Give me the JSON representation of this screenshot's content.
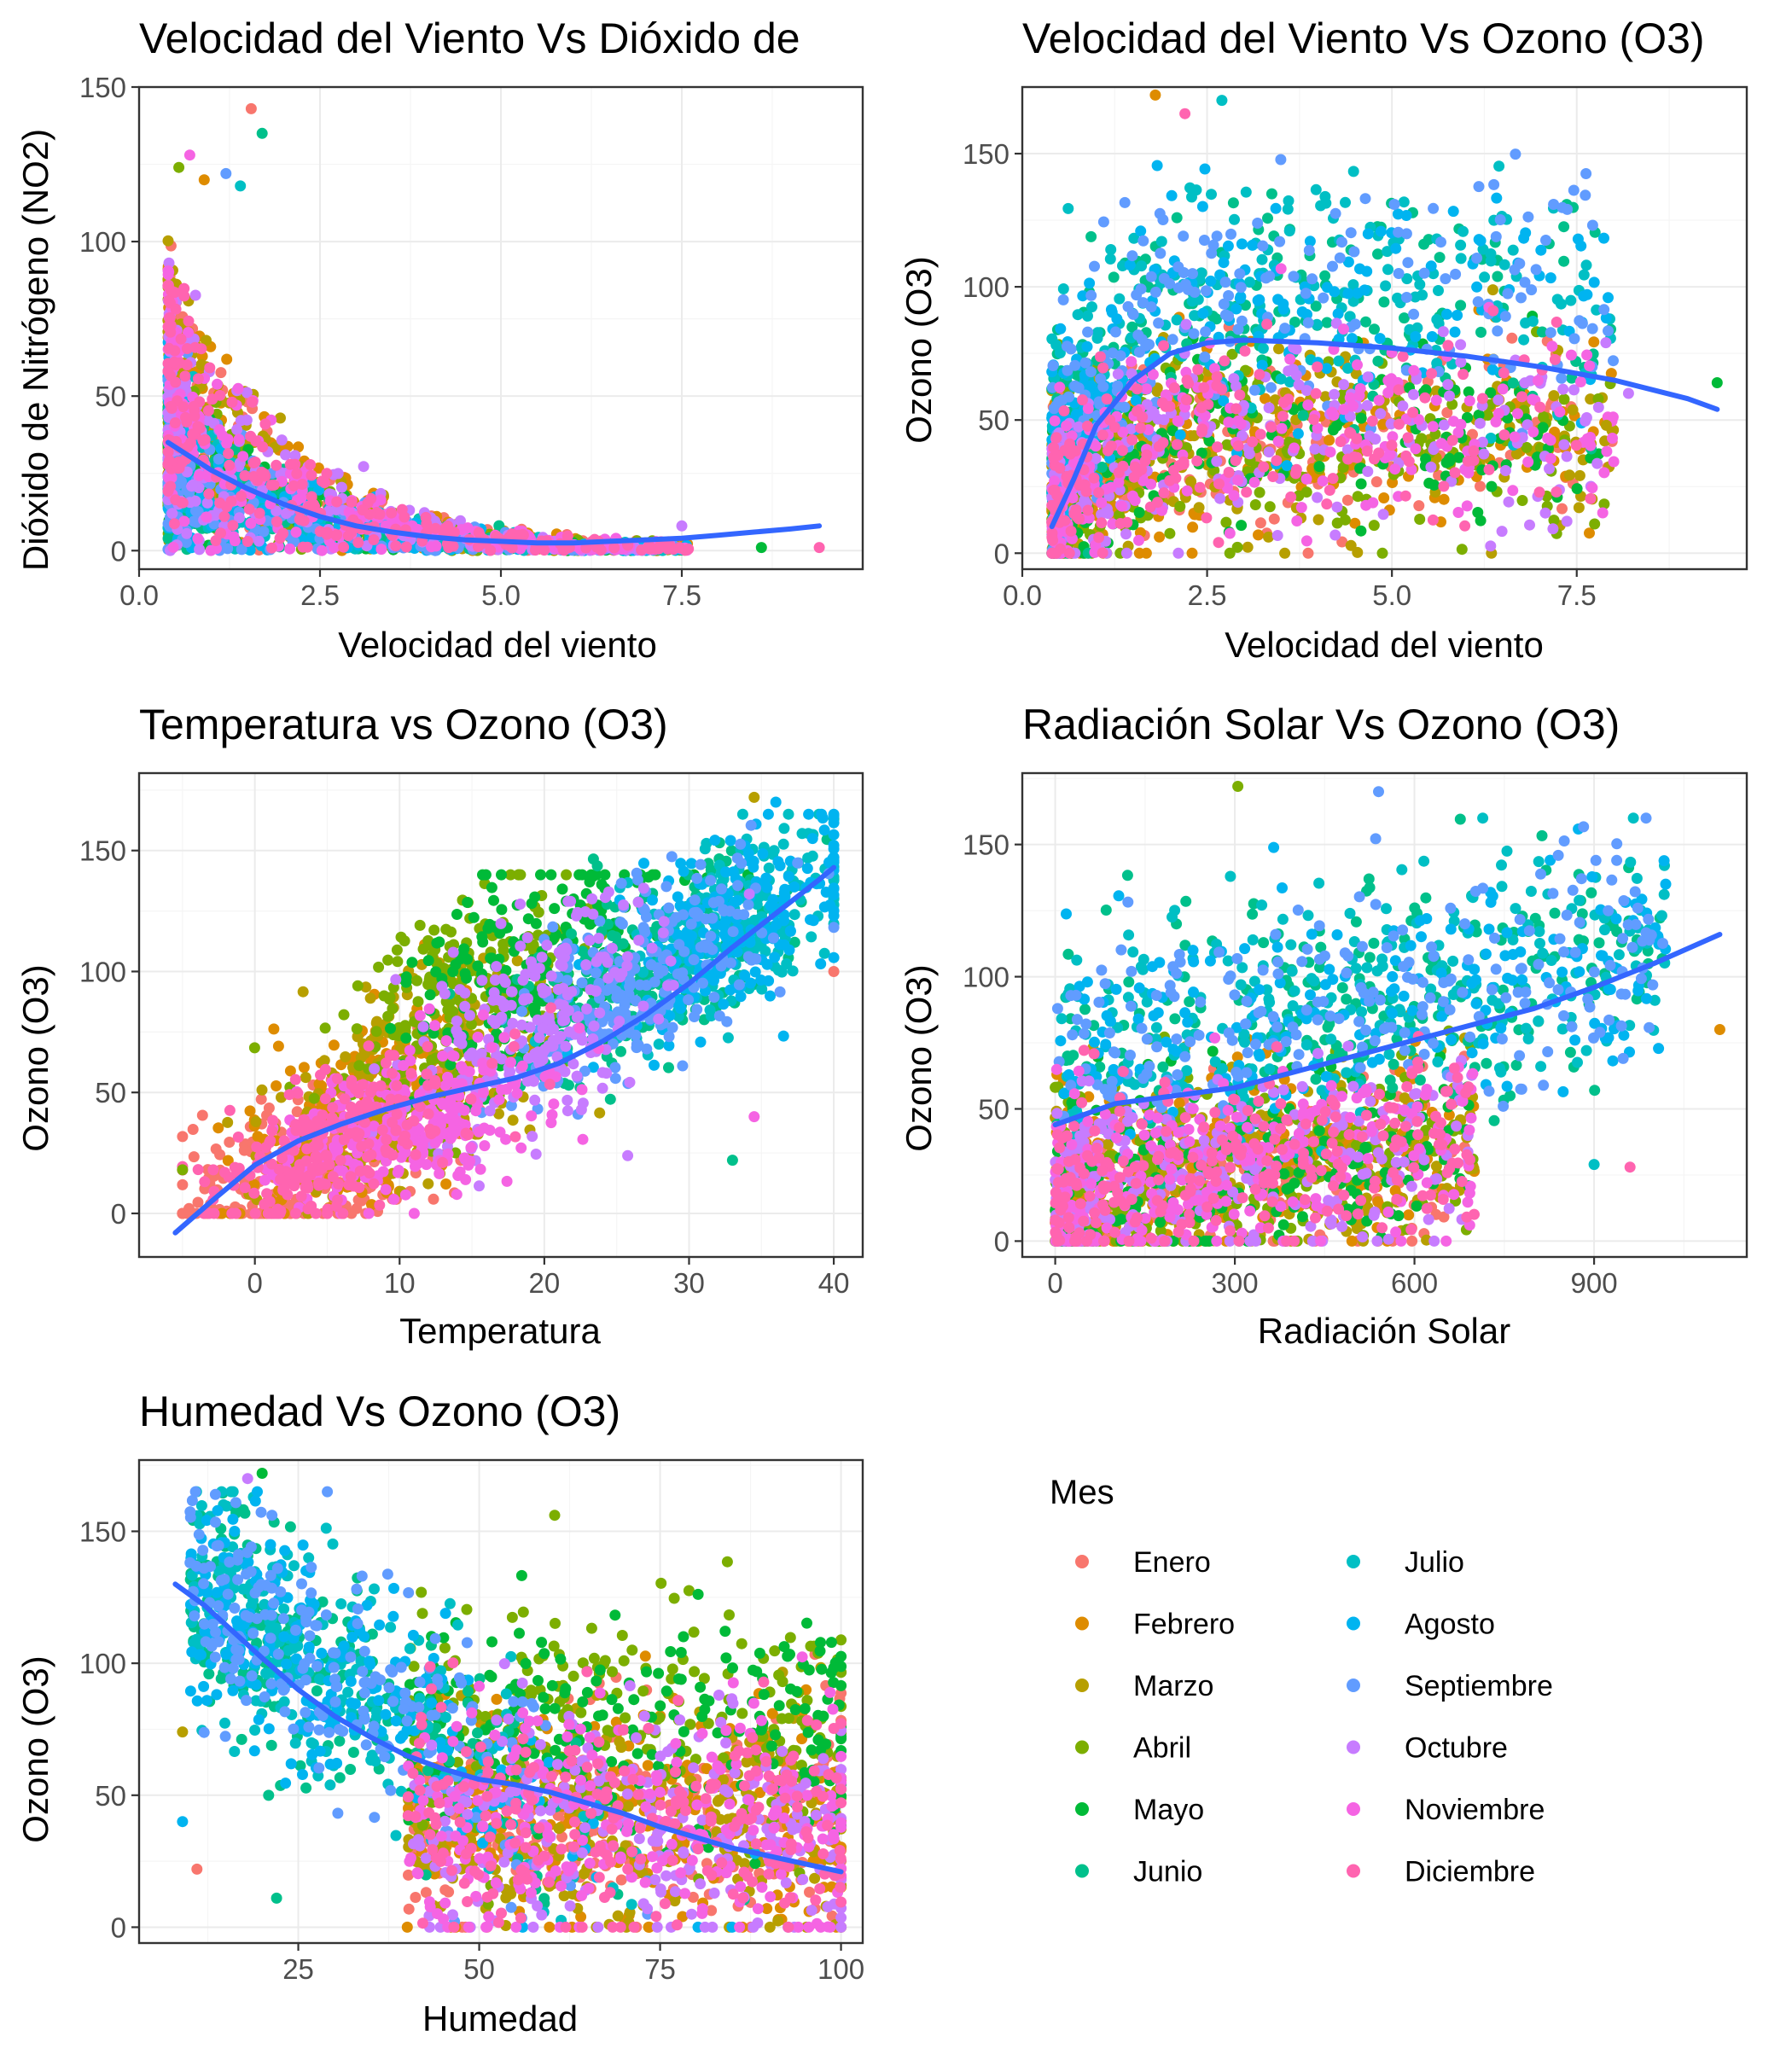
{
  "legend": {
    "title": "Mes",
    "items": [
      {
        "label": "Enero",
        "color": "#F8766D"
      },
      {
        "label": "Febrero",
        "color": "#DE8C00"
      },
      {
        "label": "Marzo",
        "color": "#B79F00"
      },
      {
        "label": "Abril",
        "color": "#7CAE00"
      },
      {
        "label": "Mayo",
        "color": "#00BA38"
      },
      {
        "label": "Junio",
        "color": "#00C08B"
      },
      {
        "label": "Julio",
        "color": "#00BFC4"
      },
      {
        "label": "Agosto",
        "color": "#00B4F0"
      },
      {
        "label": "Septiembre",
        "color": "#619CFF"
      },
      {
        "label": "Octubre",
        "color": "#C77CFF"
      },
      {
        "label": "Noviembre",
        "color": "#F564E3"
      },
      {
        "label": "Diciembre",
        "color": "#FF64B0"
      }
    ]
  },
  "smooth_color": "#3366FF",
  "chart_data": [
    {
      "type": "scatter",
      "title": "Velocidad del Viento Vs Dióxido de",
      "xlabel": "Velocidad del viento",
      "ylabel": "Dióxido de Nitrógeno (NO2)",
      "xlim": [
        0,
        10
      ],
      "ylim": [
        -6,
        150
      ],
      "x_ticks": [
        0,
        2.5,
        5,
        7.5
      ],
      "x_tick_labels": [
        "0.0",
        "2.5",
        "5.0",
        "7.5"
      ],
      "y_ticks": [
        0,
        50,
        100,
        150
      ],
      "y_tick_labels": [
        "0",
        "50",
        "100",
        "150"
      ],
      "grid": true,
      "smooth": [
        [
          0.4,
          35
        ],
        [
          1,
          26
        ],
        [
          1.5,
          20
        ],
        [
          2,
          15
        ],
        [
          2.5,
          11
        ],
        [
          3,
          8
        ],
        [
          3.5,
          6
        ],
        [
          4,
          4.5
        ],
        [
          4.5,
          3.5
        ],
        [
          5,
          3
        ],
        [
          5.5,
          2.5
        ],
        [
          6,
          2.5
        ],
        [
          6.5,
          3
        ],
        [
          7,
          3.5
        ],
        [
          7.5,
          4
        ],
        [
          8,
          5
        ],
        [
          8.5,
          6
        ],
        [
          9,
          7
        ],
        [
          9.4,
          8
        ]
      ],
      "notable_points": [
        [
          1.55,
          143
        ],
        [
          1.7,
          135
        ],
        [
          0.7,
          128
        ],
        [
          0.55,
          124
        ],
        [
          1.2,
          122
        ],
        [
          0.9,
          120
        ],
        [
          1.4,
          118
        ],
        [
          9.4,
          1
        ],
        [
          8.6,
          1
        ],
        [
          7.5,
          8
        ]
      ]
    },
    {
      "type": "scatter",
      "title": "Velocidad del Viento Vs Ozono (O3)",
      "xlabel": "Velocidad del viento",
      "ylabel": "Ozono (O3)",
      "xlim": [
        0,
        9.8
      ],
      "ylim": [
        -6,
        175
      ],
      "x_ticks": [
        0,
        2.5,
        5,
        7.5
      ],
      "x_tick_labels": [
        "0.0",
        "2.5",
        "5.0",
        "7.5"
      ],
      "y_ticks": [
        0,
        50,
        100,
        150
      ],
      "y_tick_labels": [
        "0",
        "50",
        "100",
        "150"
      ],
      "grid": true,
      "smooth": [
        [
          0.4,
          10
        ],
        [
          0.7,
          28
        ],
        [
          1,
          48
        ],
        [
          1.5,
          65
        ],
        [
          2,
          75
        ],
        [
          2.5,
          79
        ],
        [
          3,
          80
        ],
        [
          4,
          79
        ],
        [
          5,
          77
        ],
        [
          6,
          74
        ],
        [
          7,
          70
        ],
        [
          8,
          65
        ],
        [
          9,
          58
        ],
        [
          9.4,
          54
        ]
      ],
      "notable_points": [
        [
          1.8,
          172
        ],
        [
          2.7,
          170
        ],
        [
          2.2,
          165
        ],
        [
          9.4,
          64
        ],
        [
          8.2,
          60
        ],
        [
          7.9,
          48
        ]
      ]
    },
    {
      "type": "scatter",
      "title": "Temperatura vs Ozono (O3)",
      "xlabel": "Temperatura",
      "ylabel": "Ozono (O3)",
      "xlim": [
        -8,
        42
      ],
      "ylim": [
        -18,
        182
      ],
      "x_ticks": [
        0,
        10,
        20,
        30,
        40
      ],
      "x_tick_labels": [
        "0",
        "10",
        "20",
        "30",
        "40"
      ],
      "y_ticks": [
        0,
        50,
        100,
        150
      ],
      "y_tick_labels": [
        "0",
        "50",
        "100",
        "150"
      ],
      "grid": true,
      "smooth": [
        [
          -5.5,
          -8
        ],
        [
          -3,
          5
        ],
        [
          0,
          20
        ],
        [
          3,
          30
        ],
        [
          6,
          37
        ],
        [
          9,
          43
        ],
        [
          12,
          48
        ],
        [
          15,
          52
        ],
        [
          18,
          56
        ],
        [
          21,
          62
        ],
        [
          24,
          71
        ],
        [
          27,
          82
        ],
        [
          30,
          95
        ],
        [
          33,
          110
        ],
        [
          36,
          124
        ],
        [
          39,
          138
        ],
        [
          40,
          143
        ]
      ],
      "notable_points": [
        [
          34.5,
          172
        ],
        [
          36,
          170
        ],
        [
          40,
          100
        ],
        [
          33,
          22
        ],
        [
          34.5,
          40
        ],
        [
          -5,
          18
        ]
      ]
    },
    {
      "type": "scatter",
      "title": "Radiación Solar Vs Ozono (O3)",
      "xlabel": "Radiación Solar",
      "ylabel": "Ozono (O3)",
      "xlim": [
        -55,
        1155
      ],
      "ylim": [
        -6,
        177
      ],
      "x_ticks": [
        0,
        300,
        600,
        900
      ],
      "x_tick_labels": [
        "0",
        "300",
        "600",
        "900"
      ],
      "y_ticks": [
        0,
        50,
        100,
        150
      ],
      "y_tick_labels": [
        "0",
        "50",
        "100",
        "150"
      ],
      "grid": true,
      "smooth": [
        [
          0,
          44
        ],
        [
          100,
          52
        ],
        [
          200,
          55
        ],
        [
          300,
          58
        ],
        [
          400,
          64
        ],
        [
          500,
          70
        ],
        [
          600,
          76
        ],
        [
          700,
          82
        ],
        [
          800,
          88
        ],
        [
          900,
          96
        ],
        [
          1000,
          105
        ],
        [
          1110,
          116
        ]
      ],
      "notable_points": [
        [
          305,
          172
        ],
        [
          540,
          170
        ],
        [
          1110,
          80
        ],
        [
          900,
          29
        ],
        [
          960,
          28
        ]
      ]
    },
    {
      "type": "scatter",
      "title": "Humedad Vs Ozono (O3)",
      "xlabel": "Humedad",
      "ylabel": "Ozono (O3)",
      "xlim": [
        3,
        103
      ],
      "ylim": [
        -6,
        177
      ],
      "x_ticks": [
        25,
        50,
        75,
        100
      ],
      "x_tick_labels": [
        "25",
        "50",
        "75",
        "100"
      ],
      "y_ticks": [
        0,
        50,
        100,
        150
      ],
      "y_tick_labels": [
        "0",
        "50",
        "100",
        "150"
      ],
      "grid": true,
      "smooth": [
        [
          8,
          130
        ],
        [
          12,
          122
        ],
        [
          16,
          112
        ],
        [
          20,
          102
        ],
        [
          25,
          90
        ],
        [
          30,
          80
        ],
        [
          35,
          72
        ],
        [
          40,
          65
        ],
        [
          45,
          60
        ],
        [
          50,
          56
        ],
        [
          55,
          54
        ],
        [
          60,
          51
        ],
        [
          65,
          47
        ],
        [
          70,
          43
        ],
        [
          75,
          38
        ],
        [
          80,
          34
        ],
        [
          85,
          30
        ],
        [
          90,
          27
        ],
        [
          95,
          24
        ],
        [
          100,
          21
        ]
      ],
      "notable_points": [
        [
          20,
          172
        ],
        [
          18,
          170
        ],
        [
          9,
          74
        ],
        [
          9,
          40
        ],
        [
          11,
          22
        ],
        [
          22,
          11
        ]
      ]
    }
  ]
}
